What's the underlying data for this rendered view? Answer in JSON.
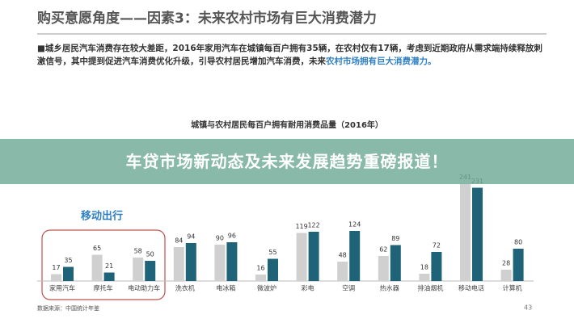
{
  "slide_title": "购买意愿角度——因素3：未来农村市场有巨大消费潜力",
  "bullet": {
    "text": "■城乡居民汽车消费存在较大差距，2016年家用汽车在城镇每百户拥有35辆，在农村仅有17辆，考虑到近期政府从需求端持续释放刺激信号，其中提到促进汽车消费优化升级，引导农村居民增加汽车消费，未来",
    "highlight": "农村市场拥有巨大消费潜力。"
  },
  "banner": "车贷市场新动态及未来发展趋势重磅报道！",
  "group_label": "移动出行",
  "source": "数据来源：中国统计年鉴",
  "page_number": "43",
  "chart_data": {
    "type": "bar",
    "title": "城镇与农村居民每百户拥有耐用消费品量（2016年）",
    "categories": [
      "家用汽车",
      "摩托车",
      "电动助力车",
      "洗衣机",
      "电冰箱",
      "微波炉",
      "彩电",
      "空调",
      "热水器",
      "排油烟机",
      "移动电话",
      "计算机"
    ],
    "series": [
      {
        "color": "#d0d0d0",
        "values": [
          17,
          65,
          58,
          84,
          90,
          16,
          119,
          48,
          62,
          18,
          241,
          28
        ]
      },
      {
        "color": "#1e6378",
        "values": [
          35,
          21,
          50,
          94,
          96,
          55,
          122,
          124,
          89,
          72,
          231,
          80
        ]
      }
    ]
  }
}
